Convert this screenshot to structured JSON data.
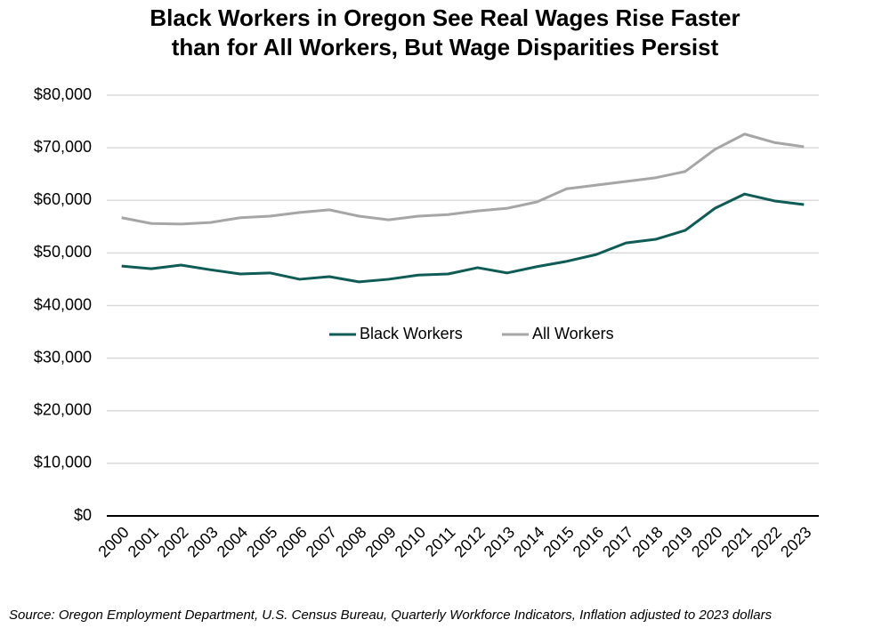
{
  "chart_data": {
    "type": "line",
    "title": [
      "Black Workers in Oregon See Real Wages Rise Faster",
      "than for All Workers, But Wage Disparities Persist"
    ],
    "categories": [
      "2000",
      "2001",
      "2002",
      "2003",
      "2004",
      "2005",
      "2006",
      "2007",
      "2008",
      "2009",
      "2010",
      "2011",
      "2012",
      "2013",
      "2014",
      "2015",
      "2016",
      "2017",
      "2018",
      "2019",
      "2020",
      "2021",
      "2022",
      "2023"
    ],
    "series": [
      {
        "name": "Black Workers",
        "color": "#0e5c55",
        "values": [
          47500,
          47000,
          47700,
          46800,
          46000,
          46200,
          45000,
          45500,
          44500,
          45000,
          45800,
          46000,
          47200,
          46200,
          47400,
          48400,
          49700,
          51900,
          52600,
          54300,
          58500,
          61200,
          59900,
          59200
        ]
      },
      {
        "name": "All Workers",
        "color": "#a6a6a6",
        "values": [
          56700,
          55600,
          55500,
          55800,
          56700,
          57000,
          57700,
          58200,
          57000,
          56300,
          57000,
          57300,
          58000,
          58500,
          59700,
          62200,
          62900,
          63600,
          64300,
          65500,
          69700,
          72600,
          71000,
          70200
        ]
      }
    ],
    "ylim": [
      0,
      80000
    ],
    "yticks": [
      {
        "value": 0,
        "label": "$0"
      },
      {
        "value": 10000,
        "label": "$10,000"
      },
      {
        "value": 20000,
        "label": "$20,000"
      },
      {
        "value": 30000,
        "label": "$30,000"
      },
      {
        "value": 40000,
        "label": "$40,000"
      },
      {
        "value": 50000,
        "label": "$50,000"
      },
      {
        "value": 60000,
        "label": "$60,000"
      },
      {
        "value": 70000,
        "label": "$70,000"
      },
      {
        "value": 80000,
        "label": "$80,000"
      }
    ],
    "grid": true,
    "legend": "center",
    "source": "Source: Oregon Employment Department, U.S. Census Bureau, Quarterly Workforce Indicators, Inflation adjusted to 2023 dollars"
  }
}
